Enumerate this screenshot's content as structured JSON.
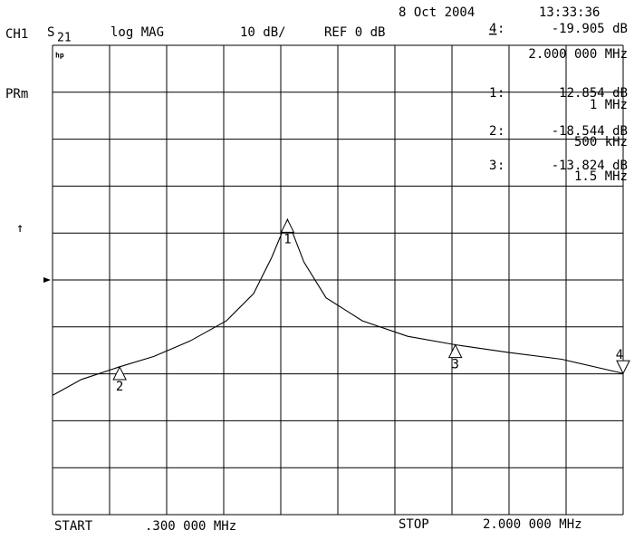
{
  "chart_data": {
    "type": "line",
    "header": {
      "date": "8 Oct 2004",
      "time": "13:33:36",
      "channel": "CH1",
      "param": "S",
      "param_sub": "21",
      "format": "log MAG",
      "scale": "10 dB/",
      "ref": "REF 0 dB",
      "status": "PRm",
      "arrow": "↑",
      "logo": "hp"
    },
    "ref_level": 0,
    "x": [
      0.3,
      0.386,
      0.5,
      0.602,
      0.71,
      0.818,
      0.899,
      0.953,
      1.0,
      1.049,
      1.115,
      1.223,
      1.358,
      1.5,
      1.655,
      1.817,
      2.0
    ],
    "values": [
      -24.6,
      -21.2,
      -18.5,
      -16.3,
      -13.0,
      -8.7,
      -2.9,
      4.8,
      12.9,
      3.8,
      -3.8,
      -8.7,
      -12.0,
      -13.8,
      -15.4,
      -16.9,
      -19.9
    ],
    "color": "#000000",
    "xlim": [
      0.3,
      2.0
    ],
    "ylim": [
      -50,
      50
    ],
    "xticks": [
      0.3,
      0.47,
      0.64,
      0.81,
      0.98,
      1.15,
      1.32,
      1.49,
      1.66,
      1.83,
      2.0
    ],
    "yticks": [
      -50,
      -40,
      -30,
      -20,
      -10,
      0,
      10,
      20,
      30,
      40,
      50
    ],
    "grid": true,
    "markers": [
      {
        "tag": "4",
        "id": "4",
        "sep": ":",
        "value": -19.905,
        "value_label": "-19.905 dB",
        "x": 2.0,
        "x_label": "2.000 000 MHz",
        "dir": "down"
      },
      {
        "tag": "1",
        "id": "1",
        "sep": ":",
        "value": 12.854,
        "value_label": "12.854 dB",
        "x": 1.0,
        "x_label": "1 MHz",
        "dir": "up"
      },
      {
        "tag": "2",
        "id": "2",
        "sep": ":",
        "value": -18.544,
        "value_label": "-18.544 dB",
        "x": 0.5,
        "x_label": "500 kHz",
        "dir": "up"
      },
      {
        "tag": "3",
        "id": "3",
        "sep": ":",
        "value": -13.824,
        "value_label": "-13.824 dB",
        "x": 1.5,
        "x_label": "1.5 MHz",
        "dir": "up"
      }
    ],
    "footer": {
      "start": "START",
      "start_value": ".300 000 MHz",
      "stop": "STOP",
      "stop_value": "2.000 000 MHz"
    }
  }
}
